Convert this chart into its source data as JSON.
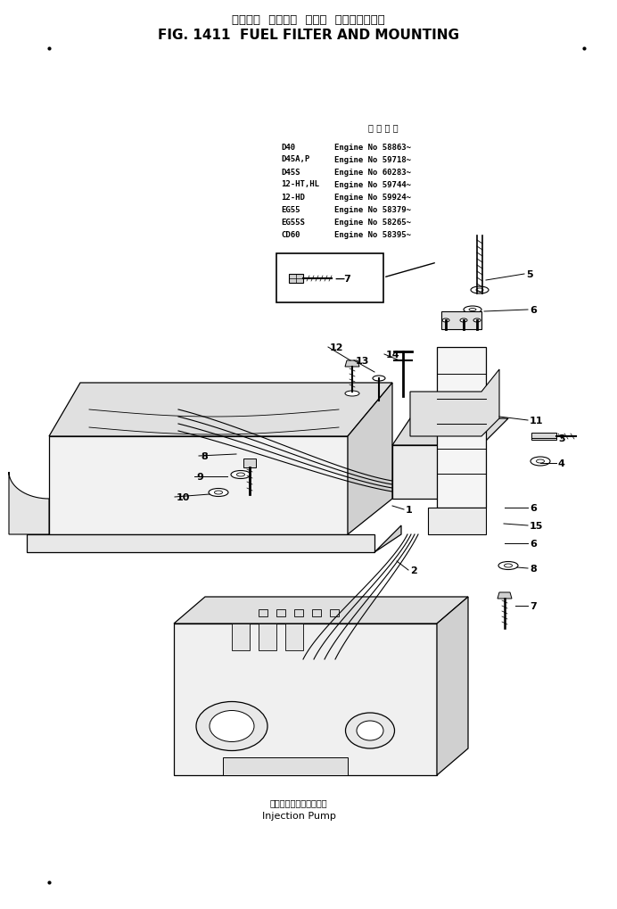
{
  "title_jp": "フェエル  フィルタ  および  マウンティング",
  "title_en": "FIG. 1411  FUEL FILTER AND MOUNTING",
  "bg_color": "#ffffff",
  "lc": "#000000",
  "applicability_header": "適 用 車 種",
  "applicability": [
    [
      "D40",
      "Engine No 58863~"
    ],
    [
      "D45A,P",
      "Engine No 59718~"
    ],
    [
      "D45S",
      "Engine No 60283~"
    ],
    [
      "12-HT,HL",
      "Engine No 59744~"
    ],
    [
      "12-HD",
      "Engine No 59924~"
    ],
    [
      "EG55",
      "Engine No 58379~"
    ],
    [
      "EG55S",
      "Engine No 58265~"
    ],
    [
      "CD60",
      "Engine No 58395~"
    ]
  ],
  "injection_pump_jp": "インジェクションポンプ",
  "injection_pump_en": "Injection Pump"
}
